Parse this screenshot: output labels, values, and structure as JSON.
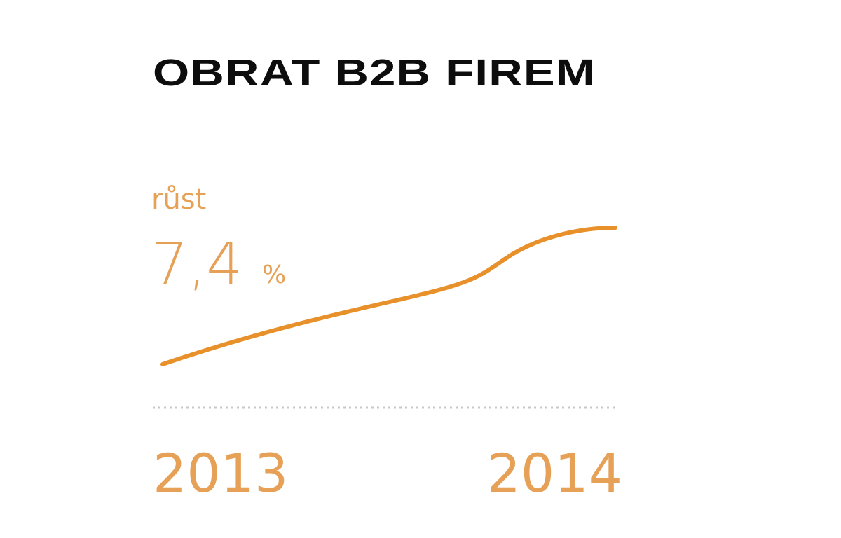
{
  "header": {
    "title": "OBRAT B2B FIREM"
  },
  "growth": {
    "label": "růst",
    "value": "7,4",
    "unit": "%"
  },
  "axis": {
    "start": "2013",
    "end": "2014"
  }
}
